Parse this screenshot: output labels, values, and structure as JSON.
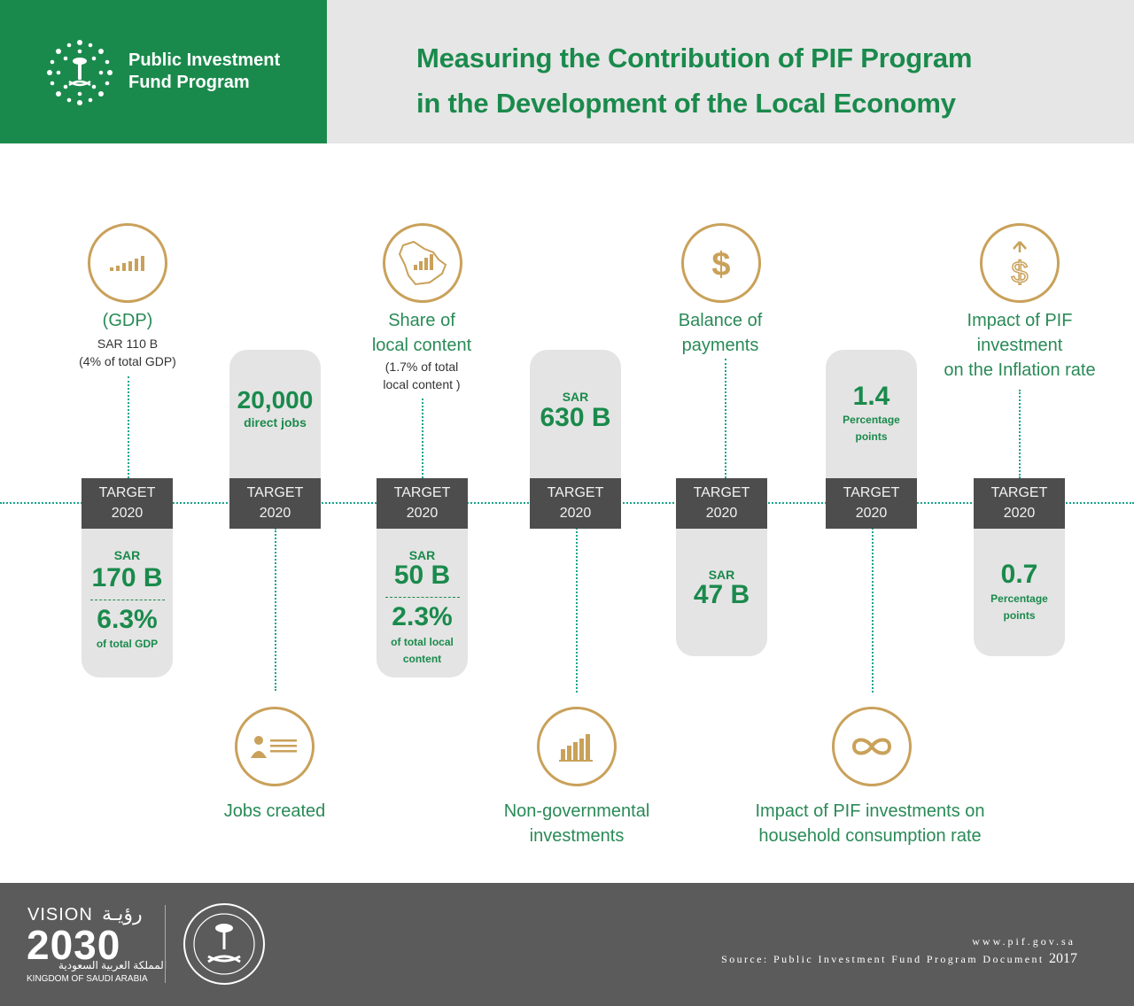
{
  "header": {
    "brand_line1": "Public Investment",
    "brand_line2": "Fund Program",
    "title_line1": "Measuring the Contribution of PIF Program",
    "title_line2": "in the Development of the Local Economy"
  },
  "colors": {
    "green": "#1a8a4c",
    "gold": "#c9a15a",
    "teal_dots": "#1aa38c",
    "dark_gray": "#4d4d4d",
    "light_gray": "#e4e4e4"
  },
  "target_label": "TARGET",
  "target_year": "2020",
  "metrics": [
    {
      "icon": "bar-chart-icon",
      "title": "(GDP)",
      "current_line1": "SAR 110 B",
      "current_line2": "(4% of total GDP)",
      "target_small": "SAR",
      "target_big": "170 B",
      "target_big2": "6.3%",
      "target_note": "of total GDP"
    },
    {
      "icon": "id-card-icon",
      "title": "Jobs created",
      "target_big": "20,000",
      "target_note": "direct jobs"
    },
    {
      "icon": "saudi-map-chart-icon",
      "title_line1": "Share of",
      "title_line2": "local content",
      "current_line1": "(1.7% of total",
      "current_line2": "local content )",
      "target_small": "SAR",
      "target_big": "50 B",
      "target_big2": "2.3%",
      "target_note_line1": "of total local",
      "target_note_line2": "content"
    },
    {
      "icon": "bar-chart-icon",
      "title_line1": "Non-governmental",
      "title_line2": "investments",
      "target_small": "SAR",
      "target_big": "630 B"
    },
    {
      "icon": "dollar-icon",
      "title_line1": "Balance of",
      "title_line2": "payments",
      "target_small": "SAR",
      "target_big": "47 B"
    },
    {
      "icon": "infinity-icon",
      "title_line1": "Impact of PIF investments on",
      "title_line2": "household consumption rate",
      "target_big": "1.4",
      "target_note_line1": "Percentage",
      "target_note_line2": "points"
    },
    {
      "icon": "dollar-up-arrow-icon",
      "title_line1": "Impact of PIF",
      "title_line2": "investment",
      "title_line3": "on the Inflation rate",
      "target_big": "0.7",
      "target_note_line1": "Percentage",
      "target_note_line2": "points"
    }
  ],
  "footer": {
    "vision_word": "VISION",
    "vision_ar": "رؤيـة",
    "vision_year": "2030",
    "vision_ar2": "المملكة العربية السعودية",
    "vision_en": "KINGDOM OF SAUDI ARABIA",
    "website": "www.pif.gov.sa",
    "source": "Source: Public Investment Fund Program Document",
    "source_year": "2017"
  }
}
